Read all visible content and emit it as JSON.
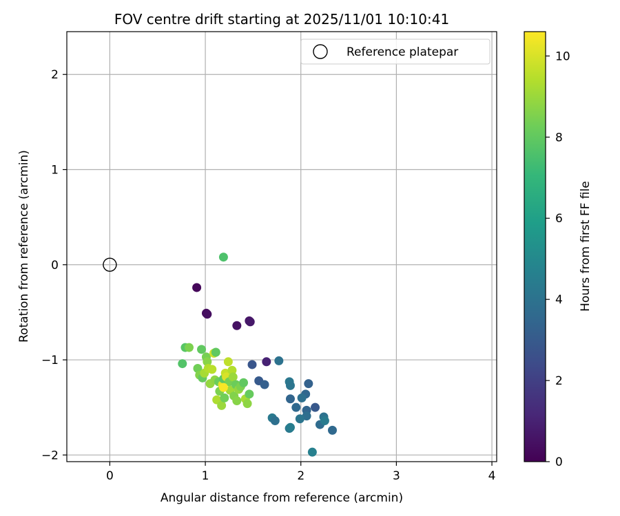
{
  "chart_data": {
    "type": "scatter",
    "title": "FOV centre drift starting at 2025/11/01 10:10:41",
    "xlabel": "Angular distance from reference (arcmin)",
    "ylabel": "Rotation from reference (arcmin)",
    "xlim": [
      -0.45,
      4.05
    ],
    "ylim": [
      -2.07,
      2.45
    ],
    "xticks": [
      0,
      1,
      2,
      3,
      4
    ],
    "yticks": [
      -2,
      -1,
      0,
      1,
      2
    ],
    "xtick_labels": [
      "0",
      "1",
      "2",
      "3",
      "4"
    ],
    "ytick_labels": [
      "−2",
      "−1",
      "0",
      "1",
      "2"
    ],
    "grid": true,
    "colorbar": {
      "label": "Hours from first FF file",
      "colormap": "viridis",
      "range": [
        0,
        10.6
      ],
      "ticks": [
        0,
        2,
        4,
        6,
        8,
        10
      ],
      "tick_labels": [
        "0",
        "2",
        "4",
        "6",
        "8",
        "10"
      ]
    },
    "legend": {
      "position": "top-right",
      "entries": [
        {
          "label": "Reference platepar",
          "marker": "open-circle"
        }
      ]
    },
    "reference_point": {
      "x": 0,
      "y": 0
    },
    "points": [
      {
        "x": 0.91,
        "y": -0.24,
        "c": 0.2
      },
      {
        "x": 1.01,
        "y": -0.51,
        "c": 0.3
      },
      {
        "x": 1.02,
        "y": -0.52,
        "c": 0.4
      },
      {
        "x": 1.33,
        "y": -0.64,
        "c": 0.5
      },
      {
        "x": 1.46,
        "y": -0.59,
        "c": 0.6
      },
      {
        "x": 1.47,
        "y": -0.6,
        "c": 0.7
      },
      {
        "x": 1.64,
        "y": -1.02,
        "c": 1.0
      },
      {
        "x": 1.49,
        "y": -1.05,
        "c": 2.8
      },
      {
        "x": 1.56,
        "y": -1.22,
        "c": 3.0
      },
      {
        "x": 1.62,
        "y": -1.26,
        "c": 3.2
      },
      {
        "x": 1.77,
        "y": -1.01,
        "c": 4.0
      },
      {
        "x": 1.88,
        "y": -1.23,
        "c": 4.2
      },
      {
        "x": 1.89,
        "y": -1.27,
        "c": 4.1
      },
      {
        "x": 1.89,
        "y": -1.41,
        "c": 3.4
      },
      {
        "x": 2.08,
        "y": -1.25,
        "c": 3.3
      },
      {
        "x": 2.05,
        "y": -1.36,
        "c": 3.5
      },
      {
        "x": 2.01,
        "y": -1.4,
        "c": 3.9
      },
      {
        "x": 1.95,
        "y": -1.5,
        "c": 3.6
      },
      {
        "x": 2.06,
        "y": -1.53,
        "c": 3.4
      },
      {
        "x": 2.15,
        "y": -1.5,
        "c": 2.9
      },
      {
        "x": 2.06,
        "y": -1.59,
        "c": 3.8
      },
      {
        "x": 1.99,
        "y": -1.62,
        "c": 4.1
      },
      {
        "x": 1.7,
        "y": -1.61,
        "c": 4.3
      },
      {
        "x": 1.73,
        "y": -1.64,
        "c": 3.9
      },
      {
        "x": 1.88,
        "y": -1.72,
        "c": 4.2
      },
      {
        "x": 1.89,
        "y": -1.71,
        "c": 4.5
      },
      {
        "x": 2.2,
        "y": -1.68,
        "c": 3.7
      },
      {
        "x": 2.24,
        "y": -1.6,
        "c": 4.0
      },
      {
        "x": 2.25,
        "y": -1.64,
        "c": 4.4
      },
      {
        "x": 2.33,
        "y": -1.74,
        "c": 3.6
      },
      {
        "x": 2.12,
        "y": -1.97,
        "c": 4.6
      },
      {
        "x": 1.19,
        "y": 0.08,
        "c": 7.6
      },
      {
        "x": 0.76,
        "y": -1.04,
        "c": 7.7
      },
      {
        "x": 0.79,
        "y": -0.87,
        "c": 7.8
      },
      {
        "x": 0.83,
        "y": -0.87,
        "c": 8.5
      },
      {
        "x": 0.96,
        "y": -0.89,
        "c": 8.0
      },
      {
        "x": 0.92,
        "y": -1.09,
        "c": 8.3
      },
      {
        "x": 0.94,
        "y": -1.16,
        "c": 8.6
      },
      {
        "x": 0.97,
        "y": -1.19,
        "c": 8.1
      },
      {
        "x": 0.99,
        "y": -1.14,
        "c": 9.2
      },
      {
        "x": 1.01,
        "y": -0.97,
        "c": 8.4
      },
      {
        "x": 1.02,
        "y": -1.02,
        "c": 8.7
      },
      {
        "x": 1.03,
        "y": -1.09,
        "c": 9.4
      },
      {
        "x": 1.05,
        "y": -1.25,
        "c": 8.9
      },
      {
        "x": 1.07,
        "y": -1.1,
        "c": 9.5
      },
      {
        "x": 1.09,
        "y": -0.93,
        "c": 9.8
      },
      {
        "x": 1.11,
        "y": -0.92,
        "c": 8.0
      },
      {
        "x": 1.1,
        "y": -1.21,
        "c": 8.8
      },
      {
        "x": 1.12,
        "y": -1.42,
        "c": 9.3
      },
      {
        "x": 1.14,
        "y": -1.23,
        "c": 8.2
      },
      {
        "x": 1.15,
        "y": -1.33,
        "c": 8.5
      },
      {
        "x": 1.17,
        "y": -1.48,
        "c": 9.0
      },
      {
        "x": 1.18,
        "y": -1.26,
        "c": 10.2
      },
      {
        "x": 1.19,
        "y": -1.2,
        "c": 7.9
      },
      {
        "x": 1.2,
        "y": -1.4,
        "c": 8.3
      },
      {
        "x": 1.21,
        "y": -1.14,
        "c": 9.7
      },
      {
        "x": 1.22,
        "y": -1.18,
        "c": 10.0
      },
      {
        "x": 1.24,
        "y": -1.02,
        "c": 9.6
      },
      {
        "x": 1.25,
        "y": -1.23,
        "c": 8.4
      },
      {
        "x": 1.26,
        "y": -1.32,
        "c": 9.1
      },
      {
        "x": 1.28,
        "y": -1.11,
        "c": 9.4
      },
      {
        "x": 1.29,
        "y": -1.18,
        "c": 9.0
      },
      {
        "x": 1.3,
        "y": -1.38,
        "c": 8.6
      },
      {
        "x": 1.32,
        "y": -1.26,
        "c": 8.2
      },
      {
        "x": 1.33,
        "y": -1.43,
        "c": 8.7
      },
      {
        "x": 1.35,
        "y": -1.31,
        "c": 8.9
      },
      {
        "x": 1.37,
        "y": -1.28,
        "c": 8.5
      },
      {
        "x": 1.4,
        "y": -1.24,
        "c": 8.0
      },
      {
        "x": 1.42,
        "y": -1.41,
        "c": 9.2
      },
      {
        "x": 1.44,
        "y": -1.46,
        "c": 8.8
      },
      {
        "x": 1.46,
        "y": -1.36,
        "c": 8.1
      },
      {
        "x": 1.19,
        "y": -1.29,
        "c": 10.5
      }
    ]
  }
}
